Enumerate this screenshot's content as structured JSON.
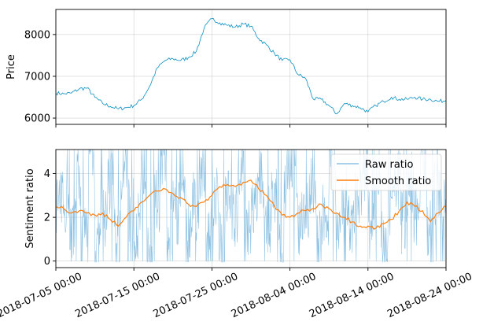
{
  "chart_data": [
    {
      "type": "line",
      "ylabel": "Price",
      "xlabel": "",
      "ylim": [
        5850,
        8600
      ],
      "y_ticks": [
        6000,
        7000,
        8000
      ],
      "y_tick_labels": [
        "6000",
        "7000",
        "8000"
      ],
      "grid": true,
      "legend": "none",
      "series": [
        {
          "color": "#0a8fc0",
          "x": [
            "2018-07-05",
            "2018-07-06",
            "2018-07-07",
            "2018-07-08",
            "2018-07-09",
            "2018-07-10",
            "2018-07-11",
            "2018-07-12",
            "2018-07-13",
            "2018-07-14",
            "2018-07-15",
            "2018-07-16",
            "2018-07-17",
            "2018-07-18",
            "2018-07-19",
            "2018-07-20",
            "2018-07-21",
            "2018-07-22",
            "2018-07-23",
            "2018-07-24",
            "2018-07-25",
            "2018-07-26",
            "2018-07-27",
            "2018-07-28",
            "2018-07-29",
            "2018-07-30",
            "2018-07-31",
            "2018-08-01",
            "2018-08-02",
            "2018-08-03",
            "2018-08-04",
            "2018-08-05",
            "2018-08-06",
            "2018-08-07",
            "2018-08-08",
            "2018-08-09",
            "2018-08-10",
            "2018-08-11",
            "2018-08-12",
            "2018-08-13",
            "2018-08-14",
            "2018-08-15",
            "2018-08-16",
            "2018-08-17",
            "2018-08-18",
            "2018-08-19",
            "2018-08-20",
            "2018-08-21",
            "2018-08-22",
            "2018-08-23",
            "2018-08-24"
          ],
          "values": [
            6600,
            6580,
            6600,
            6700,
            6720,
            6500,
            6350,
            6280,
            6220,
            6250,
            6300,
            6450,
            6750,
            7200,
            7380,
            7420,
            7380,
            7450,
            7600,
            8150,
            8380,
            8280,
            8220,
            8180,
            8250,
            8200,
            7900,
            7750,
            7550,
            7380,
            7400,
            7050,
            6950,
            6450,
            6450,
            6300,
            6100,
            6350,
            6300,
            6250,
            6150,
            6300,
            6400,
            6500,
            6450,
            6450,
            6500,
            6450,
            6450,
            6400,
            6420
          ]
        }
      ]
    },
    {
      "type": "line",
      "ylabel": "Sentiment ratio",
      "xlabel": "",
      "ylim": [
        -0.3,
        5.1
      ],
      "y_ticks": [
        0,
        2,
        4
      ],
      "y_tick_labels": [
        "0",
        "2",
        "4"
      ],
      "grid": true,
      "legend": "top-right",
      "x_ticks": [
        "2018-07-05",
        "2018-07-15",
        "2018-07-25",
        "2018-08-04",
        "2018-08-14",
        "2018-08-24"
      ],
      "x_tick_labels": [
        "2018-07-05 00:00",
        "2018-07-15 00:00",
        "2018-07-25 00:00",
        "2018-08-04 00:00",
        "2018-08-14 00:00",
        "2018-08-24 00:00"
      ],
      "series": [
        {
          "name": "Raw ratio",
          "color": "#74b4dc",
          "values": [
            2.6,
            2.9,
            1.4,
            3.9,
            1.2,
            5.0,
            0.6,
            2.1,
            3.4,
            1.0,
            4.4,
            2.3,
            1.6,
            3.1,
            0.3,
            2.7,
            4.8,
            1.8,
            2.2,
            3.6,
            1.1,
            2.5,
            4.1,
            1.5,
            2.9,
            0.7,
            3.3,
            2.0,
            4.6,
            1.3,
            2.4,
            3.8,
            1.9,
            2.8,
            0.5,
            3.0,
            4.3,
            1.7,
            2.6,
            3.5,
            1.0,
            2.2,
            4.9,
            2.0,
            3.2,
            1.4,
            2.7,
            4.0,
            1.6,
            3.4,
            0.8,
            2.5,
            3.9,
            1.9,
            3.6,
            2.3,
            5.0,
            1.2,
            3.1,
            2.6
          ]
        },
        {
          "name": "Smooth ratio",
          "color": "#ff7f0e",
          "x": [
            "2018-07-05",
            "2018-07-06",
            "2018-07-07",
            "2018-07-08",
            "2018-07-09",
            "2018-07-10",
            "2018-07-11",
            "2018-07-12",
            "2018-07-13",
            "2018-07-14",
            "2018-07-15",
            "2018-07-16",
            "2018-07-17",
            "2018-07-18",
            "2018-07-19",
            "2018-07-20",
            "2018-07-21",
            "2018-07-22",
            "2018-07-23",
            "2018-07-24",
            "2018-07-25",
            "2018-07-26",
            "2018-07-27",
            "2018-07-28",
            "2018-07-29",
            "2018-07-30",
            "2018-07-31",
            "2018-08-01",
            "2018-08-02",
            "2018-08-03",
            "2018-08-04",
            "2018-08-05",
            "2018-08-06",
            "2018-08-07",
            "2018-08-08",
            "2018-08-09",
            "2018-08-10",
            "2018-08-11",
            "2018-08-12",
            "2018-08-13",
            "2018-08-14",
            "2018-08-15",
            "2018-08-16",
            "2018-08-17",
            "2018-08-18",
            "2018-08-19",
            "2018-08-20",
            "2018-08-21",
            "2018-08-22",
            "2018-08-23",
            "2018-08-24"
          ],
          "values": [
            2.5,
            2.4,
            2.2,
            2.3,
            2.2,
            2.1,
            2.2,
            1.9,
            1.6,
            2.0,
            2.3,
            2.7,
            3.0,
            3.2,
            3.3,
            3.1,
            2.9,
            2.6,
            2.5,
            2.7,
            3.0,
            3.4,
            3.5,
            3.4,
            3.6,
            3.7,
            3.3,
            3.0,
            2.5,
            2.1,
            2.0,
            2.2,
            2.3,
            2.4,
            2.6,
            2.4,
            2.2,
            2.0,
            1.8,
            1.6,
            1.6,
            1.5,
            1.7,
            1.9,
            2.3,
            2.7,
            2.5,
            2.3,
            1.8,
            2.2,
            2.5
          ]
        }
      ]
    }
  ]
}
